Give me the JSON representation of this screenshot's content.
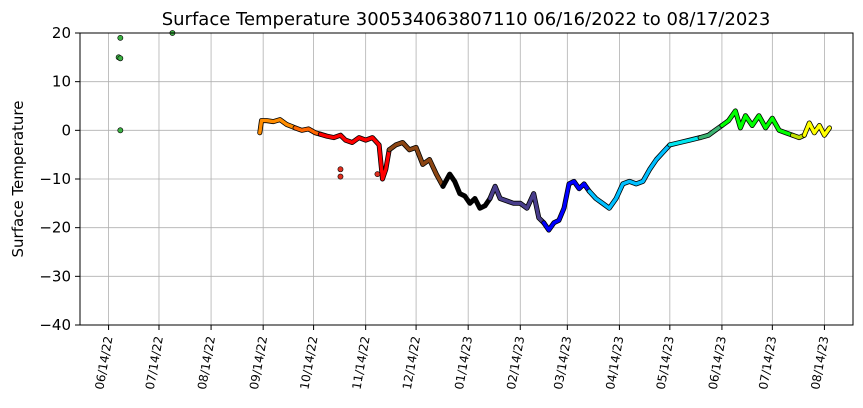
{
  "chart_data": {
    "type": "scatter",
    "title": "Surface Temperature 300534063807110  06/16/2022 to 08/17/2023",
    "xlabel": "",
    "ylabel": "Surface Temperature",
    "ylim": [
      -40,
      20
    ],
    "yticks": [
      20,
      10,
      0,
      -10,
      -20,
      -30,
      -40
    ],
    "xlim": [
      "2022-05-28",
      "2023-08-31"
    ],
    "xticks": [
      {
        "date": "2022-06-14",
        "label": "06/14/22"
      },
      {
        "date": "2022-07-14",
        "label": "07/14/22"
      },
      {
        "date": "2022-08-14",
        "label": "08/14/22"
      },
      {
        "date": "2022-09-14",
        "label": "09/14/22"
      },
      {
        "date": "2022-10-14",
        "label": "10/14/22"
      },
      {
        "date": "2022-11-14",
        "label": "11/14/22"
      },
      {
        "date": "2022-12-14",
        "label": "12/14/22"
      },
      {
        "date": "2023-01-14",
        "label": "01/14/23"
      },
      {
        "date": "2023-02-14",
        "label": "02/14/23"
      },
      {
        "date": "2023-03-14",
        "label": "03/14/23"
      },
      {
        "date": "2023-04-14",
        "label": "04/14/23"
      },
      {
        "date": "2023-05-14",
        "label": "05/14/23"
      },
      {
        "date": "2023-06-14",
        "label": "06/14/23"
      },
      {
        "date": "2023-07-14",
        "label": "07/14/23"
      },
      {
        "date": "2023-08-14",
        "label": "08/14/23"
      }
    ],
    "grid": true,
    "outliers": [
      {
        "x": "2022-06-21",
        "y": 19,
        "color": "#3cb043"
      },
      {
        "x": "2022-06-20",
        "y": 15,
        "color": "#3cb043"
      },
      {
        "x": "2022-06-21",
        "y": 14.8,
        "color": "#3cb043"
      },
      {
        "x": "2022-06-21",
        "y": 0,
        "color": "#3cb043"
      },
      {
        "x": "2022-07-22",
        "y": 20,
        "color": "#3cb043"
      },
      {
        "x": "2022-10-30",
        "y": -8,
        "color": "#e03020"
      },
      {
        "x": "2022-10-30",
        "y": -9.5,
        "color": "#e03020"
      },
      {
        "x": "2022-11-21",
        "y": -9,
        "color": "#e03020"
      }
    ],
    "series": [
      {
        "color": "#ff8c00",
        "x": [
          "2022-09-12",
          "2022-09-13",
          "2022-09-16",
          "2022-09-20",
          "2022-09-24",
          "2022-09-28",
          "2022-10-01",
          "2022-10-03"
        ],
        "y": [
          -0.5,
          2,
          2,
          1.8,
          2.2,
          1.2,
          0.8,
          0.5
        ]
      },
      {
        "color": "#ff6600",
        "x": [
          "2022-10-03",
          "2022-10-07",
          "2022-10-11",
          "2022-10-15",
          "2022-10-18"
        ],
        "y": [
          0.5,
          0,
          0.3,
          -0.5,
          -0.8
        ]
      },
      {
        "color": "#ff0000",
        "x": [
          "2022-10-18",
          "2022-10-22",
          "2022-10-26",
          "2022-10-30",
          "2022-11-02",
          "2022-11-06",
          "2022-11-10",
          "2022-11-14",
          "2022-11-18",
          "2022-11-22",
          "2022-11-24",
          "2022-11-26",
          "2022-11-28"
        ],
        "y": [
          -0.8,
          -1.2,
          -1.5,
          -1,
          -2,
          -2.5,
          -1.5,
          -2,
          -1.5,
          -3,
          -10,
          -8,
          -4
        ]
      },
      {
        "color": "#8b4513",
        "x": [
          "2022-11-28",
          "2022-12-02",
          "2022-12-06",
          "2022-12-10",
          "2022-12-14",
          "2022-12-18",
          "2022-12-22",
          "2022-12-26",
          "2022-12-30"
        ],
        "y": [
          -4,
          -3,
          -2.5,
          -4,
          -3.5,
          -7,
          -6,
          -9,
          -11.5
        ]
      },
      {
        "color": "#000000",
        "x": [
          "2022-12-30",
          "2023-01-03",
          "2023-01-06",
          "2023-01-09",
          "2023-01-12",
          "2023-01-15",
          "2023-01-18",
          "2023-01-21",
          "2023-01-24",
          "2023-01-27"
        ],
        "y": [
          -11.5,
          -9,
          -10.5,
          -13,
          -13.5,
          -15,
          -14,
          -16,
          -15.5,
          -14
        ]
      },
      {
        "color": "#483d8b",
        "x": [
          "2023-01-27",
          "2023-01-30",
          "2023-02-02",
          "2023-02-06",
          "2023-02-10",
          "2023-02-14",
          "2023-02-18",
          "2023-02-22",
          "2023-02-25",
          "2023-02-28"
        ],
        "y": [
          -14,
          -11.5,
          -14,
          -14.5,
          -15,
          -15,
          -16,
          -13,
          -18,
          -19
        ]
      },
      {
        "color": "#0000ff",
        "x": [
          "2023-02-28",
          "2023-03-03",
          "2023-03-06",
          "2023-03-09",
          "2023-03-12",
          "2023-03-15",
          "2023-03-18",
          "2023-03-21",
          "2023-03-24",
          "2023-03-27"
        ],
        "y": [
          -19,
          -20.5,
          -19,
          -18.5,
          -16,
          -11,
          -10.5,
          -12,
          -11,
          -12.5
        ]
      },
      {
        "color": "#00bfff",
        "x": [
          "2023-03-27",
          "2023-03-31",
          "2023-04-04",
          "2023-04-08",
          "2023-04-12",
          "2023-04-16",
          "2023-04-20",
          "2023-04-24",
          "2023-04-28",
          "2023-05-02",
          "2023-05-06",
          "2023-05-10",
          "2023-05-14"
        ],
        "y": [
          -12.5,
          -14,
          -15,
          -16,
          -14,
          -11,
          -10.5,
          -11,
          -10.5,
          -8,
          -6,
          -4.5,
          -3
        ]
      },
      {
        "color": "#00e5ee",
        "x": [
          "2023-05-14",
          "2023-05-20",
          "2023-05-26",
          "2023-06-01"
        ],
        "y": [
          -3,
          -2.5,
          -2,
          -1.5
        ]
      },
      {
        "color": "#3cb371",
        "x": [
          "2023-06-01",
          "2023-06-06",
          "2023-06-10",
          "2023-06-14"
        ],
        "y": [
          -1.5,
          -1,
          0,
          1
        ]
      },
      {
        "color": "#00ff00",
        "x": [
          "2023-06-14",
          "2023-06-18",
          "2023-06-22",
          "2023-06-25",
          "2023-06-28",
          "2023-07-02",
          "2023-07-06",
          "2023-07-10",
          "2023-07-14",
          "2023-07-18",
          "2023-07-22",
          "2023-07-26"
        ],
        "y": [
          1,
          2,
          4,
          0.5,
          3,
          1,
          3,
          0.5,
          2.5,
          0,
          -0.5,
          -1
        ]
      },
      {
        "color": "#c0e000",
        "x": [
          "2023-07-26",
          "2023-07-30",
          "2023-08-02"
        ],
        "y": [
          -1,
          -1.5,
          -1
        ]
      },
      {
        "color": "#ffff00",
        "x": [
          "2023-08-02",
          "2023-08-05",
          "2023-08-08",
          "2023-08-11",
          "2023-08-14",
          "2023-08-17"
        ],
        "y": [
          -1,
          1.5,
          -0.5,
          1,
          -1,
          0.5
        ]
      }
    ]
  }
}
